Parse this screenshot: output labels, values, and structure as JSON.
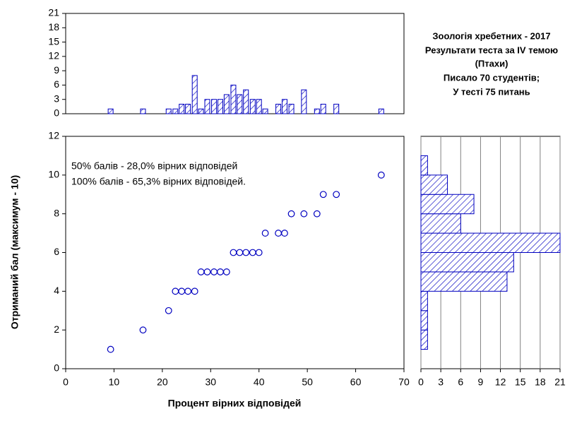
{
  "chart_data": [
    {
      "type": "bar",
      "color": "#0000c0",
      "x": [
        9.3,
        16.0,
        21.3,
        22.7,
        24.0,
        25.3,
        26.7,
        28.0,
        29.3,
        30.7,
        32.0,
        33.3,
        34.7,
        36.0,
        37.3,
        38.7,
        40.0,
        41.3,
        44.0,
        45.3,
        46.7,
        49.3,
        52.0,
        53.3,
        56.0,
        65.3
      ],
      "values": [
        1,
        1,
        1,
        1,
        2,
        2,
        8,
        1,
        3,
        3,
        3,
        4,
        6,
        4,
        5,
        3,
        3,
        1,
        2,
        3,
        2,
        5,
        1,
        2,
        2,
        1
      ],
      "xlim": [
        0,
        70
      ],
      "ylim": [
        0,
        21
      ],
      "yticks": [
        0,
        3,
        6,
        9,
        12,
        15,
        18,
        21
      ],
      "grid": false
    },
    {
      "type": "scatter",
      "color": "#0000c0",
      "title": [
        "Зоологія хребетних - 2017",
        "Результати теста за IV темою",
        "(Птахи)",
        "Писало 70 студентів;",
        "У тесті 75 питань"
      ],
      "annotations": [
        "50% балів - 28,0% вірних відповідей",
        "100% балів - 65,3% вірних відповідей."
      ],
      "x_label": "Процент вірних відповідей",
      "y_label": "Отриманий бал (максимум - 10)",
      "x": [
        9.3,
        16.0,
        21.3,
        22.7,
        24.0,
        25.3,
        26.7,
        28.0,
        29.3,
        30.7,
        32.0,
        33.3,
        34.7,
        36.0,
        37.3,
        38.7,
        40.0,
        41.3,
        44.0,
        45.3,
        46.7,
        49.3,
        52.0,
        53.3,
        56.0,
        65.3
      ],
      "values": [
        1,
        2,
        3,
        4,
        4,
        4,
        4,
        5,
        5,
        5,
        5,
        5,
        6,
        6,
        6,
        6,
        6,
        7,
        7,
        7,
        8,
        8,
        8,
        9,
        9,
        10
      ],
      "xlim": [
        0,
        70
      ],
      "xticks": [
        0,
        10,
        20,
        30,
        40,
        50,
        60,
        70
      ],
      "ylim": [
        0,
        12
      ],
      "yticks": [
        0,
        2,
        4,
        6,
        8,
        10,
        12
      ],
      "grid": false
    },
    {
      "type": "histogram",
      "orientation": "horizontal",
      "color": "#0000c0",
      "bins": [
        1,
        2,
        3,
        4,
        5,
        6,
        7,
        8,
        9,
        10,
        11
      ],
      "values": [
        1,
        1,
        1,
        13,
        14,
        21,
        6,
        8,
        4,
        1
      ],
      "xlim": [
        0,
        21
      ],
      "xticks": [
        0,
        3,
        6,
        9,
        12,
        15,
        18,
        21
      ],
      "ylim": [
        0,
        12
      ],
      "grid": true
    }
  ]
}
